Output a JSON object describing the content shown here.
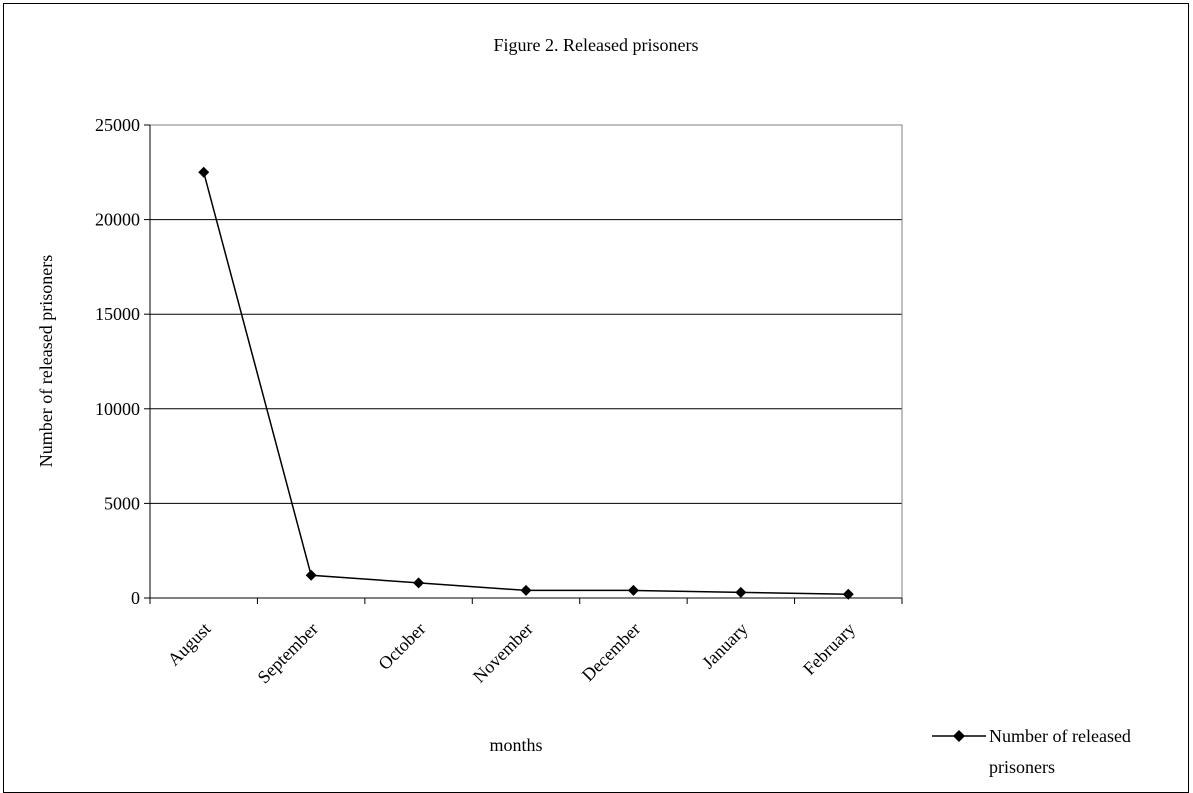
{
  "chart_data": {
    "type": "line",
    "title": "Figure 2. Released prisoners",
    "xlabel": "months",
    "ylabel": "Number of released prisoners",
    "categories": [
      "August",
      "September",
      "October",
      "November",
      "December",
      "January",
      "February"
    ],
    "series": [
      {
        "name": "Number of released prisoners",
        "values": [
          22500,
          1200,
          800,
          400,
          400,
          300,
          200
        ],
        "color": "#000000",
        "marker": "diamond"
      }
    ],
    "ylim": [
      0,
      25000
    ],
    "yticks": [
      "0",
      "5000",
      "10000",
      "15000",
      "20000",
      "25000"
    ],
    "grid": true,
    "legend_position": "bottom-right",
    "legend": {
      "line1": "Number of released",
      "line2": "prisoners"
    }
  }
}
